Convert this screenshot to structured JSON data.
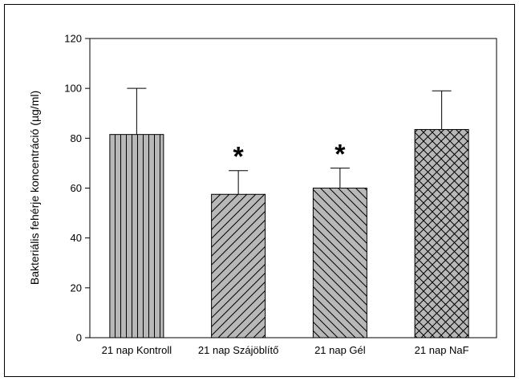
{
  "chart_data": {
    "type": "bar",
    "title": "",
    "xlabel": "",
    "ylabel": "Bakteriális fehérje koncentráció (µg/ml)",
    "ylim": [
      0,
      120
    ],
    "yticks": [
      0,
      20,
      40,
      60,
      80,
      100,
      120
    ],
    "categories": [
      "21 nap Kontroll",
      "21 nap Szájöblítő",
      "21 nap Gél",
      "21 nap NaF"
    ],
    "values": [
      81.5,
      57.5,
      60,
      83.5
    ],
    "error_plus": [
      18.5,
      9.5,
      8,
      15.5
    ],
    "patterns": [
      "vertical-lines",
      "diagonal-up-lines",
      "diagonal-down-lines",
      "crosshatch"
    ],
    "significance_markers": [
      "",
      "*",
      "*",
      ""
    ],
    "grid": false,
    "legend": "none",
    "colors": {
      "bar_fill": "#b8b8b8",
      "stroke": "#000000"
    }
  }
}
